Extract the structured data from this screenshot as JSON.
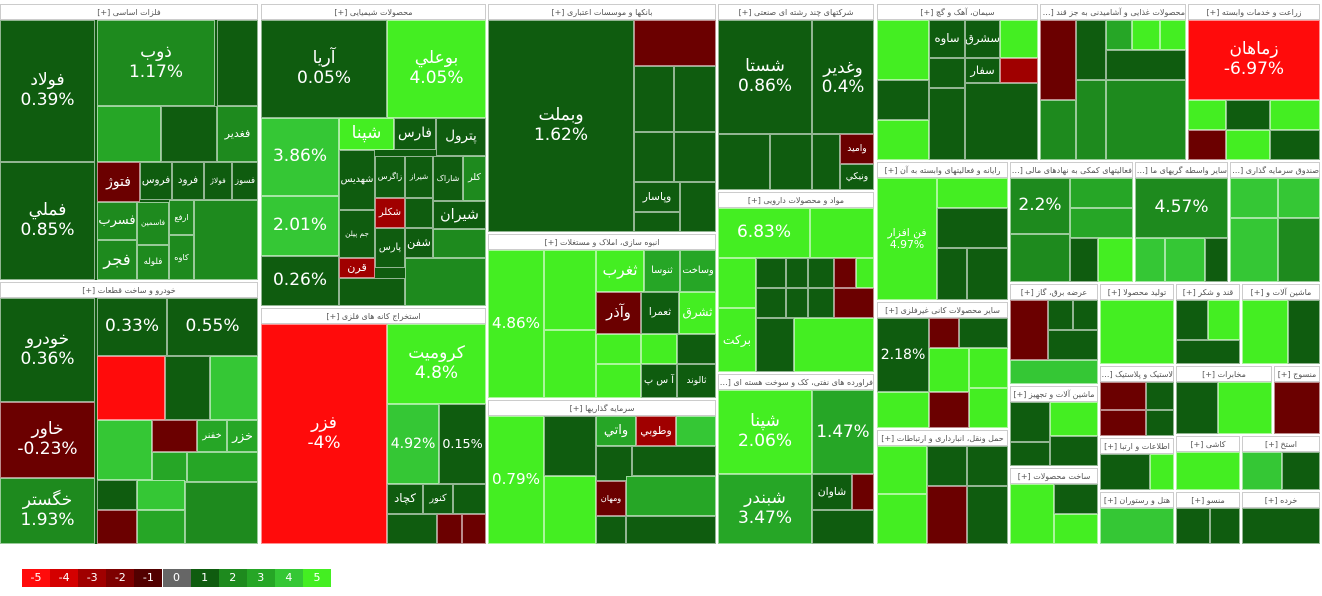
{
  "sectors": [
    {
      "title": "فلزات اساسی [+]",
      "tiles": [
        {
          "label": "فولاد",
          "pct": "0.39%",
          "color": "#0f5c0f"
        },
        {
          "label": "فملي",
          "pct": "0.85%",
          "color": "#0f5c0f"
        },
        {
          "label": "ذوب",
          "pct": "1.17%",
          "color": "#1e8a1e"
        },
        {
          "color": "#0f5c0f"
        },
        {
          "label": "فغدیر",
          "color": "#1e8a1e"
        },
        {
          "color": "#26a626"
        },
        {
          "color": "#0f5c0f"
        },
        {
          "label": "فتوژ",
          "color": "#6b0000"
        },
        {
          "label": "فروس",
          "color": "#0f5c0f"
        },
        {
          "label": "فرود",
          "color": "#0f5c0f"
        },
        {
          "label": "فولاژ",
          "color": "#0f5c0f"
        },
        {
          "label": "فسوز",
          "color": "#0f5c0f"
        },
        {
          "label": "فسرب",
          "color": "#1e8a1e"
        },
        {
          "label": "فاسمين",
          "color": "#1e8a1e"
        },
        {
          "label": "ارفع",
          "color": "#1e8a1e"
        },
        {
          "label": "کاوه",
          "color": "#1e8a1e"
        },
        {
          "label": "فجر",
          "color": "#1e8a1e"
        },
        {
          "label": "فلوله",
          "color": "#1e8a1e"
        },
        {
          "color": "#1e8a1e"
        }
      ]
    },
    {
      "title": "خودرو و ساخت قطعات [+]",
      "tiles": [
        {
          "label": "خودرو",
          "pct": "0.36%",
          "color": "#0f5c0f"
        },
        {
          "label": "خاور",
          "pct": "-0.23%",
          "color": "#6b0000"
        },
        {
          "label": "خگستر",
          "pct": "1.93%",
          "color": "#1e8a1e"
        },
        {
          "pct": "0.33%",
          "color": "#0f5c0f"
        },
        {
          "pct": "0.55%",
          "color": "#0f5c0f"
        },
        {
          "color": "#ff0b0b"
        },
        {
          "color": "#0f5c0f"
        },
        {
          "color": "#35c735"
        },
        {
          "color": "#35c735"
        },
        {
          "color": "#6b0000"
        },
        {
          "label": "خفنر",
          "color": "#26a626"
        },
        {
          "label": "خزر",
          "color": "#26a626"
        },
        {
          "color": "#26a626"
        },
        {
          "color": "#26a626"
        },
        {
          "color": "#0f5c0f"
        },
        {
          "color": "#35c735"
        },
        {
          "color": "#6b0000"
        },
        {
          "color": "#26a626"
        },
        {
          "color": "#1e8a1e"
        }
      ]
    },
    {
      "title": "محصولات شیمیایی [+]",
      "tiles": [
        {
          "label": "آريا",
          "pct": "0.05%",
          "color": "#0f5c0f"
        },
        {
          "label": "بوعلي",
          "pct": "4.05%",
          "color": "#44ee22"
        },
        {
          "pct": "3.86%",
          "color": "#35c735"
        },
        {
          "pct": "2.01%",
          "color": "#35c735"
        },
        {
          "pct": "0.26%",
          "color": "#0f5c0f"
        },
        {
          "label": "شپنا",
          "color": "#44ee22"
        },
        {
          "label": "فارس",
          "color": "#0f5c0f"
        },
        {
          "label": "پترول",
          "color": "#0f5c0f"
        },
        {
          "label": "شهديس",
          "color": "#0f5c0f"
        },
        {
          "label": "زاگرس",
          "color": "#0f5c0f"
        },
        {
          "label": "شيراز",
          "color": "#0f5c0f"
        },
        {
          "label": "شاراک",
          "color": "#0f5c0f"
        },
        {
          "label": "کلر",
          "color": "#1e8a1e"
        },
        {
          "label": "شکلر",
          "color": "#a00000"
        },
        {
          "color": "#0f5c0f"
        },
        {
          "label": "شيران",
          "color": "#0f5c0f"
        },
        {
          "label": "جم پيلن",
          "color": "#0f5c0f"
        },
        {
          "label": "قرن",
          "color": "#a00000"
        },
        {
          "label": "پارس",
          "color": "#0f5c0f"
        },
        {
          "label": "شفن",
          "color": "#0f5c0f"
        },
        {
          "color": "#0f5c0f"
        },
        {
          "color": "#1e8a1e"
        },
        {
          "color": "#1e8a1e"
        }
      ]
    },
    {
      "title": "استخراج کانه های فلزی [+]",
      "tiles": [
        {
          "label": "فزر",
          "pct": "-4%",
          "color": "#ff0b0b"
        },
        {
          "label": "کرومیت",
          "pct": "4.8%",
          "color": "#44ee22"
        },
        {
          "pct": "4.92%",
          "color": "#35c735"
        },
        {
          "pct": "0.15%",
          "color": "#0f5c0f"
        },
        {
          "label": "کچاد",
          "color": "#0f5c0f"
        },
        {
          "label": "کنور",
          "color": "#0f5c0f"
        },
        {
          "color": "#0f5c0f"
        },
        {
          "color": "#0f5c0f"
        },
        {
          "color": "#6b0000"
        },
        {
          "color": "#6b0000"
        }
      ]
    },
    {
      "title": "بانکها و موسسات اعتباری [+]",
      "tiles": [
        {
          "label": "وبملت",
          "pct": "1.62%",
          "color": "#0f5c0f"
        },
        {
          "color": "#6b0000"
        },
        {
          "color": "#0f5c0f"
        },
        {
          "color": "#0f5c0f"
        },
        {
          "color": "#0f5c0f"
        },
        {
          "color": "#0f5c0f"
        },
        {
          "label": "وپاسار",
          "color": "#0f5c0f"
        },
        {
          "color": "#0f5c0f"
        },
        {
          "color": "#0f5c0f"
        }
      ]
    },
    {
      "title": "انبوه سازی، املاک و مستغلات [+]",
      "tiles": [
        {
          "pct": "4.86%",
          "color": "#44ee22"
        },
        {
          "color": "#44ee22"
        },
        {
          "color": "#44ee22"
        },
        {
          "label": "ثغرب",
          "color": "#44ee22"
        },
        {
          "label": "ثنوسا",
          "color": "#26a626"
        },
        {
          "label": "وساخت",
          "color": "#26a626"
        },
        {
          "label": "وآذر",
          "color": "#6b0000"
        },
        {
          "label": "ثعمرا",
          "color": "#0f5c0f"
        },
        {
          "label": "ثشرق",
          "color": "#44ee22"
        },
        {
          "color": "#44ee22"
        },
        {
          "color": "#44ee22"
        },
        {
          "color": "#0f5c0f"
        },
        {
          "color": "#44ee22"
        },
        {
          "label": "آ س پ",
          "color": "#0f5c0f"
        },
        {
          "label": "ثالوند",
          "color": "#0f5c0f"
        }
      ]
    },
    {
      "title": "سرمایه گذاریها [+]",
      "tiles": [
        {
          "pct": "0.79%",
          "color": "#44ee22"
        },
        {
          "color": "#0f5c0f"
        },
        {
          "color": "#44ee22"
        },
        {
          "label": "واتي",
          "color": "#26a626"
        },
        {
          "label": "وطوبي",
          "color": "#a00000"
        },
        {
          "color": "#35c735"
        },
        {
          "color": "#0f5c0f"
        },
        {
          "color": "#0f5c0f"
        },
        {
          "label": "ومهان",
          "color": "#6b0000"
        },
        {
          "color": "#26a626"
        },
        {
          "color": "#0f5c0f"
        },
        {
          "color": "#0f5c0f"
        }
      ]
    },
    {
      "title": "شرکتهای چند رشته ای صنعتی [+]",
      "tiles": [
        {
          "label": "شستا",
          "pct": "0.86%",
          "color": "#0f5c0f"
        },
        {
          "label": "وغدير",
          "pct": "0.4%",
          "color": "#0f5c0f"
        },
        {
          "color": "#0f5c0f"
        },
        {
          "color": "#0f5c0f"
        },
        {
          "color": "#0f5c0f"
        },
        {
          "label": "واميد",
          "color": "#6b0000"
        },
        {
          "label": "ونيکي",
          "color": "#0f5c0f"
        }
      ]
    },
    {
      "title": "مواد و محصولات دارویی [+]",
      "tiles": [
        {
          "pct": "6.83%",
          "color": "#44ee22"
        },
        {
          "color": "#44ee22"
        },
        {
          "color": "#44ee22"
        },
        {
          "color": "#0f5c0f"
        },
        {
          "color": "#0f5c0f"
        },
        {
          "color": "#0f5c0f"
        },
        {
          "color": "#6b0000"
        },
        {
          "color": "#44ee22"
        },
        {
          "color": "#0f5c0f"
        },
        {
          "color": "#0f5c0f"
        },
        {
          "color": "#0f5c0f"
        },
        {
          "color": "#6b0000"
        },
        {
          "label": "برکت",
          "color": "#44ee22"
        },
        {
          "color": "#0f5c0f"
        },
        {
          "color": "#44ee22"
        }
      ]
    },
    {
      "title": "فراورده های نفتی، کک و سوخت هسته ای [+]",
      "tiles": [
        {
          "label": "شپنا",
          "pct": "2.06%",
          "color": "#44ee22"
        },
        {
          "pct": "1.47%",
          "color": "#26a626"
        },
        {
          "label": "شبندر",
          "pct": "3.47%",
          "color": "#26a626"
        },
        {
          "label": "شاوان",
          "color": "#0f5c0f"
        },
        {
          "color": "#6b0000"
        },
        {
          "color": "#0f5c0f"
        }
      ]
    },
    {
      "title": "سیمان، آهک و گچ [+]",
      "tiles": [
        {
          "color": "#44ee22"
        },
        {
          "label": "ساوه",
          "color": "#0f5c0f"
        },
        {
          "label": "سشرق",
          "color": "#0f5c0f"
        },
        {
          "color": "#44ee22"
        },
        {
          "color": "#0f5c0f"
        },
        {
          "label": "سفار",
          "color": "#0f5c0f"
        },
        {
          "color": "#a00000"
        },
        {
          "color": "#0f5c0f"
        },
        {
          "color": "#44ee22"
        },
        {
          "color": "#0f5c0f"
        },
        {
          "color": "#0f5c0f"
        }
      ]
    },
    {
      "title": "محصولات غذایی و آشامیدنی به جز قند [+]",
      "tiles": [
        {
          "color": "#6b0000"
        },
        {
          "color": "#0f5c0f"
        },
        {
          "color": "#26a626"
        },
        {
          "color": "#44ee22"
        },
        {
          "color": "#44ee22"
        },
        {
          "color": "#0f5c0f"
        },
        {
          "color": "#1e8a1e"
        },
        {
          "color": "#1e8a1e"
        },
        {
          "color": "#1e8a1e"
        }
      ]
    },
    {
      "title": "زراعت و خدمات وابسته [+]",
      "tiles": [
        {
          "label": "زماهان",
          "pct": "-6.97%",
          "color": "#ff0b0b"
        },
        {
          "color": "#44ee22"
        },
        {
          "color": "#0f5c0f"
        },
        {
          "color": "#44ee22"
        },
        {
          "color": "#6b0000"
        },
        {
          "color": "#44ee22"
        },
        {
          "color": "#0f5c0f"
        }
      ]
    },
    {
      "title": "رایانه و فعالیتهای وابسته به آن [+]",
      "tiles": [
        {
          "label": "فن افزار",
          "pct": "4.97%",
          "color": "#44ee22"
        },
        {
          "color": "#44ee22"
        },
        {
          "color": "#0f5c0f"
        },
        {
          "color": "#0f5c0f"
        },
        {
          "color": "#0f5c0f"
        }
      ]
    },
    {
      "title": "فعالیتهای کمکی به نهادهای مالی [+]",
      "tiles": [
        {
          "pct": "2.2%",
          "color": "#1e8a1e"
        },
        {
          "color": "#26a626"
        },
        {
          "color": "#26a626"
        },
        {
          "color": "#1e8a1e"
        },
        {
          "color": "#0f5c0f"
        },
        {
          "color": "#44ee22"
        }
      ]
    },
    {
      "title": "سایر واسطه گریهای ما [+]",
      "tiles": [
        {
          "pct": "4.57%",
          "color": "#1e8a1e"
        },
        {
          "color": "#35c735"
        },
        {
          "color": "#35c735"
        },
        {
          "color": "#0f5c0f"
        }
      ]
    },
    {
      "title": "صندوق سرمایه گذاری [+]",
      "tiles": [
        {
          "color": "#35c735"
        },
        {
          "color": "#35c735"
        },
        {
          "color": "#35c735"
        },
        {
          "color": "#1e8a1e"
        }
      ]
    },
    {
      "title": "سایر محصولات کانی غیرفلزی [+]",
      "tiles": [
        {
          "pct": "2.18%",
          "color": "#0f5c0f"
        },
        {
          "color": "#6b0000"
        },
        {
          "color": "#0f5c0f"
        },
        {
          "color": "#44ee22"
        },
        {
          "color": "#44ee22"
        },
        {
          "color": "#44ee22"
        },
        {
          "color": "#6b0000"
        },
        {
          "color": "#44ee22"
        }
      ]
    },
    {
      "title": "حمل ونقل، انبارداری و ارتباطات [+]",
      "tiles": [
        {
          "color": "#44ee22"
        },
        {
          "color": "#0f5c0f"
        },
        {
          "color": "#0f5c0f"
        },
        {
          "color": "#44ee22"
        },
        {
          "color": "#6b0000"
        },
        {
          "color": "#0f5c0f"
        }
      ]
    },
    {
      "title": "عرضه برق، گاز [+]",
      "tiles": [
        {
          "color": "#6b0000"
        },
        {
          "color": "#0f5c0f"
        },
        {
          "color": "#0f5c0f"
        },
        {
          "color": "#0f5c0f"
        },
        {
          "color": "#35c735"
        }
      ]
    },
    {
      "title": "تولید محصولا [+]",
      "tiles": [
        {
          "color": "#44ee22"
        }
      ]
    },
    {
      "title": "قند و شکر [+]",
      "tiles": [
        {
          "color": "#0f5c0f"
        },
        {
          "color": "#44ee22"
        },
        {
          "color": "#0f5c0f"
        }
      ]
    },
    {
      "title": "ماشین آلات و [+]",
      "tiles": [
        {
          "color": "#44ee22"
        },
        {
          "color": "#0f5c0f"
        }
      ]
    },
    {
      "title": "ماشین آلات و تجهیز [+]",
      "tiles": [
        {
          "color": "#0f5c0f"
        },
        {
          "color": "#44ee22"
        },
        {
          "color": "#0f5c0f"
        },
        {
          "color": "#0f5c0f"
        }
      ]
    },
    {
      "title": "ساخت محصولات [+]",
      "tiles": [
        {
          "color": "#44ee22"
        },
        {
          "color": "#0f5c0f"
        },
        {
          "color": "#44ee22"
        }
      ]
    },
    {
      "title": "لاستیک و پلاستیک [+]",
      "tiles": [
        {
          "color": "#6b0000"
        },
        {
          "color": "#0f5c0f"
        },
        {
          "color": "#6b0000"
        },
        {
          "color": "#0f5c0f"
        }
      ]
    },
    {
      "title": "مخابرات [+]",
      "tiles": [
        {
          "color": "#0f5c0f"
        },
        {
          "color": "#44ee22"
        }
      ]
    },
    {
      "title": "منسوج [+]",
      "tiles": [
        {
          "color": "#6b0000"
        }
      ]
    },
    {
      "title": "اطلاعات و ارتبا [+]",
      "tiles": [
        {
          "color": "#0f5c0f"
        },
        {
          "color": "#44ee22"
        }
      ]
    },
    {
      "title": "کاشی [+]",
      "tiles": [
        {
          "color": "#44ee22"
        }
      ]
    },
    {
      "title": "استخ [+]",
      "tiles": [
        {
          "color": "#35c735"
        },
        {
          "color": "#0f5c0f"
        }
      ]
    },
    {
      "title": "هتل و رستوران [+]",
      "tiles": [
        {
          "color": "#35c735"
        }
      ]
    },
    {
      "title": "منسو [+]",
      "tiles": [
        {
          "color": "#0f5c0f"
        },
        {
          "color": "#0f5c0f"
        }
      ]
    },
    {
      "title": "خرده [+]",
      "tiles": [
        {
          "color": "#0f5c0f"
        }
      ]
    }
  ],
  "legend": [
    {
      "label": -5,
      "color": "#ff0b0b"
    },
    {
      "label": -4,
      "color": "#d40000"
    },
    {
      "label": -3,
      "color": "#a00000"
    },
    {
      "label": -2,
      "color": "#7d0000"
    },
    {
      "label": -1,
      "color": "#520000"
    },
    {
      "label": 0,
      "color": "#666666"
    },
    {
      "label": 1,
      "color": "#0f5c0f"
    },
    {
      "label": 2,
      "color": "#1e8a1e"
    },
    {
      "label": 3,
      "color": "#26a626"
    },
    {
      "label": 4,
      "color": "#35c735"
    },
    {
      "label": 5,
      "color": "#44ee22"
    }
  ]
}
